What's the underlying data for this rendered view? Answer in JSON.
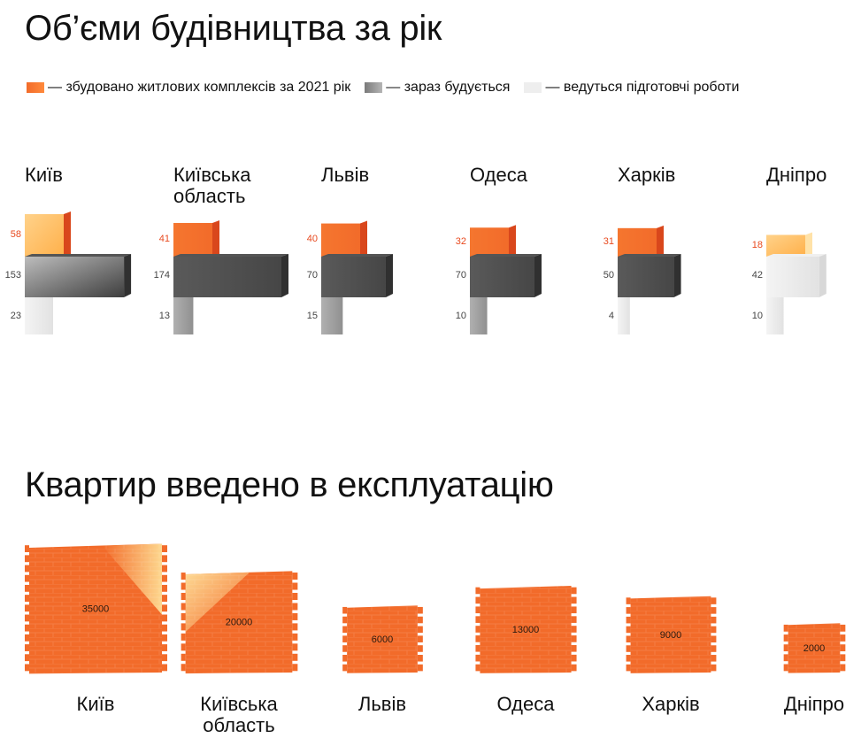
{
  "title": "Об’єми будівництва за рік",
  "legend": [
    {
      "label": "— збудовано житлових комплексів за 2021 рік",
      "color": "#f26b2a"
    },
    {
      "label": "— зараз будується",
      "color": "#8c8c8c"
    },
    {
      "label": "— ведуться підготовчі роботи",
      "color": "#eeeeee"
    }
  ],
  "chart_data": [
    {
      "type": "bar",
      "title": "Об’єми будівництва за рік",
      "categories": [
        "Київ",
        "Київська область",
        "Львів",
        "Одеса",
        "Харків",
        "Дніпро"
      ],
      "series": [
        {
          "name": "— збудовано житлових комплексів за 2021 рік",
          "values": [
            58,
            41,
            40,
            32,
            31,
            18
          ]
        },
        {
          "name": "— зараз будується",
          "values": [
            153,
            174,
            70,
            70,
            50,
            42
          ]
        },
        {
          "name": "— ведуться підготовчі роботи",
          "values": [
            23,
            13,
            15,
            10,
            4,
            10
          ]
        }
      ],
      "legend": "top"
    },
    {
      "type": "bar",
      "title": "Квартир введено в експлуатацію",
      "categories": [
        "Київ",
        "Київська область",
        "Львів",
        "Одеса",
        "Харків",
        "Дніпро"
      ],
      "values": [
        35000,
        20000,
        6000,
        13000,
        9000,
        2000
      ]
    }
  ],
  "section2_title": "Квартир введено в експлуатацію",
  "colors": {
    "orange": "#f26b2a",
    "orange_dark": "#d9471c",
    "orange_light": "#ffd28a",
    "dark": "#4a4a4a",
    "gray": "#a0a0a0",
    "light": "#eeeeee"
  }
}
